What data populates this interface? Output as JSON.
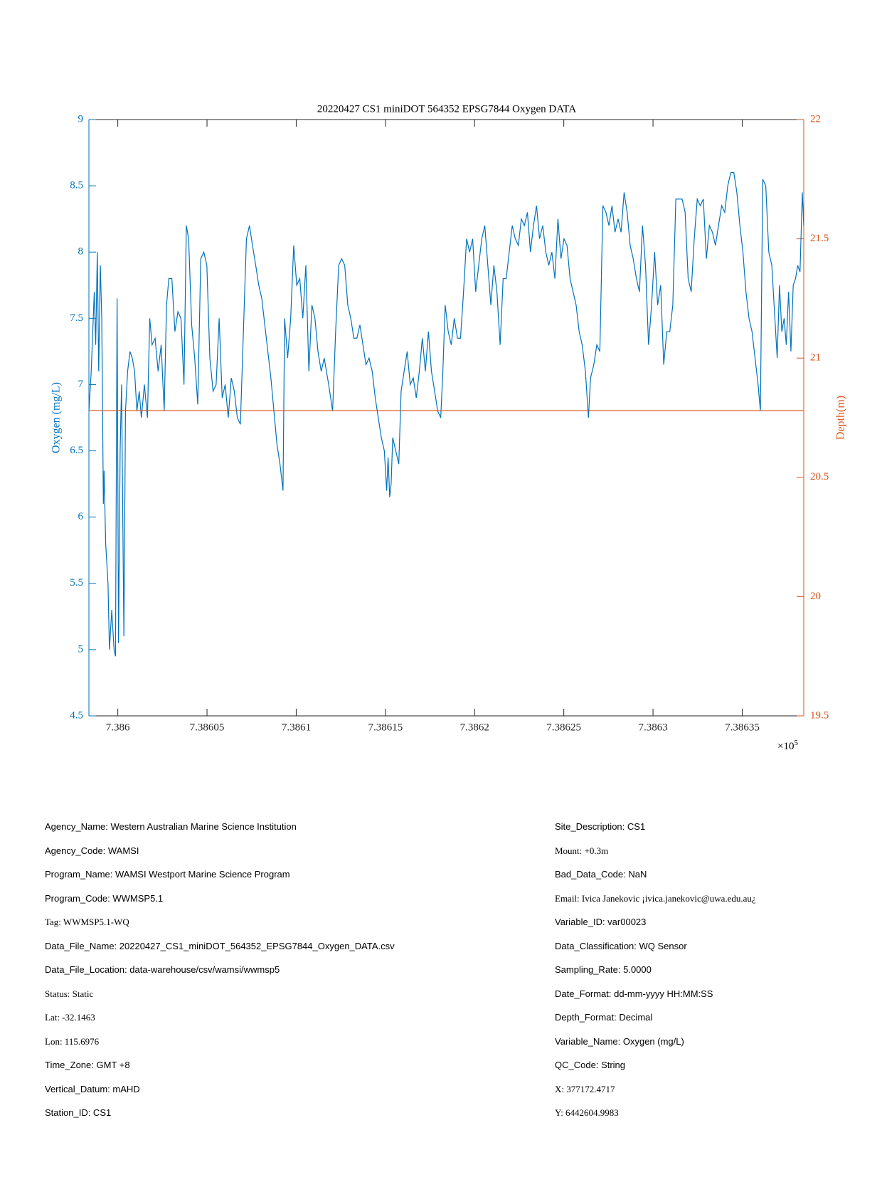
{
  "chart_data": {
    "type": "line",
    "title": "20220427 CS1 miniDOT 564352 EPSG7844 Oxygen DATA",
    "ylabel": "Oxygen (mg/L)",
    "y2label": "Depth(m)",
    "x_multiplier": {
      "base": "×10",
      "power": "5"
    },
    "xlim": [
      738598.38,
      738638.45
    ],
    "xticks": [
      {
        "value": 738600,
        "label": "7.386"
      },
      {
        "value": 738605,
        "label": "7.38605"
      },
      {
        "value": 738610,
        "label": "7.3861"
      },
      {
        "value": 738615,
        "label": "7.38615"
      },
      {
        "value": 738620,
        "label": "7.3862"
      },
      {
        "value": 738625,
        "label": "7.38625"
      },
      {
        "value": 738630,
        "label": "7.3863"
      },
      {
        "value": 738635,
        "label": "7.38635"
      }
    ],
    "ylim": [
      4.5,
      9
    ],
    "yticks": [
      4.5,
      5,
      5.5,
      6,
      6.5,
      7,
      7.5,
      8,
      8.5,
      9
    ],
    "y2lim": [
      19.5,
      22
    ],
    "y2ticks": [
      19.5,
      20,
      20.5,
      21,
      21.5,
      22
    ],
    "series": [
      {
        "name": "Oxygen",
        "color": "#0072BD",
        "x": [
          738598.38,
          738598.51,
          738598.68,
          738598.76,
          738598.85,
          738598.93,
          738599.02,
          738599.1,
          738599.19,
          738599.23,
          738599.32,
          738599.45,
          738599.53,
          738599.66,
          738599.79,
          738599.87,
          738599.96,
          738600.04,
          738600.13,
          738600.21,
          738600.34,
          738600.43,
          738600.55,
          738600.68,
          738600.81,
          738600.94,
          738601.07,
          738601.2,
          738601.32,
          738601.49,
          738601.66,
          738601.79,
          738601.92,
          738602.09,
          738602.26,
          738602.43,
          738602.6,
          738602.73,
          738602.86,
          738603.03,
          738603.2,
          738603.37,
          738603.54,
          738603.71,
          738603.84,
          738603.97,
          738604.14,
          738604.31,
          738604.48,
          738604.65,
          738604.82,
          738604.99,
          738605.16,
          738605.34,
          738605.51,
          738605.68,
          738605.85,
          738606.02,
          738606.19,
          738606.36,
          738606.53,
          738606.7,
          738606.87,
          738607.04,
          738607.21,
          738607.38,
          738607.55,
          738607.73,
          738607.9,
          738608.07,
          738608.24,
          738608.41,
          738608.58,
          738608.75,
          738608.92,
          738609.09,
          738609.26,
          738609.35,
          738609.52,
          738609.69,
          738609.86,
          738610.03,
          738610.2,
          738610.37,
          738610.54,
          738610.71,
          738610.88,
          738611.05,
          738611.22,
          738611.4,
          738611.57,
          738611.82,
          738612.04,
          738612.21,
          738612.38,
          738612.55,
          738612.72,
          738612.89,
          738613.06,
          738613.23,
          738613.4,
          738613.57,
          738613.74,
          738613.91,
          738614.08,
          738614.26,
          738614.43,
          738614.6,
          738614.77,
          738614.94,
          738615.07,
          738615.15,
          738615.24,
          738615.32,
          738615.41,
          738615.58,
          738615.75,
          738615.88,
          738616.05,
          738616.22,
          738616.39,
          738616.56,
          738616.73,
          738616.9,
          738617.07,
          738617.24,
          738617.41,
          738617.58,
          738617.76,
          738617.93,
          738618.1,
          738618.22,
          738618.35,
          738618.52,
          738618.69,
          738618.86,
          738619.04,
          738619.21,
          738619.38,
          738619.55,
          738619.72,
          738619.89,
          738620.06,
          738620.23,
          738620.4,
          738620.57,
          738620.74,
          738620.91,
          738621.08,
          738621.25,
          738621.43,
          738621.6,
          738621.77,
          738621.94,
          738622.11,
          738622.28,
          738622.45,
          738622.62,
          738622.79,
          738622.96,
          738623.13,
          738623.3,
          738623.47,
          738623.64,
          738623.82,
          738623.99,
          738624.16,
          738624.33,
          738624.5,
          738624.67,
          738624.84,
          738625.01,
          738625.18,
          738625.35,
          738625.52,
          738625.69,
          738625.86,
          738626.03,
          738626.21,
          738626.38,
          738626.5,
          738626.68,
          738626.85,
          738627.02,
          738627.19,
          738627.36,
          738627.53,
          738627.7,
          738627.87,
          738628.04,
          738628.21,
          738628.38,
          738628.55,
          738628.72,
          738628.89,
          738629.07,
          738629.24,
          738629.41,
          738629.58,
          738629.75,
          738629.92,
          738630.09,
          738630.26,
          738630.43,
          738630.6,
          738630.77,
          738630.94,
          738631.11,
          738631.28,
          738631.46,
          738631.63,
          738631.8,
          738631.97,
          738632.14,
          738632.31,
          738632.48,
          738632.65,
          738632.82,
          738632.99,
          738633.16,
          738633.33,
          738633.5,
          738633.67,
          738633.85,
          738634.02,
          738634.19,
          738634.36,
          738634.53,
          738634.7,
          738634.87,
          738635.04,
          738635.21,
          738635.38,
          738635.55,
          738635.72,
          738635.89,
          738636.02,
          738636.15,
          738636.32,
          738636.49,
          738636.66,
          738636.83,
          738636.96,
          738637.09,
          738637.22,
          738637.35,
          738637.47,
          738637.6,
          738637.73,
          738637.86,
          738637.99,
          738638.11,
          738638.24,
          738638.37,
          738638.45
        ],
        "values": [
          6.8,
          7.1,
          7.7,
          7.3,
          8.0,
          7.1,
          7.9,
          7.5,
          6.1,
          6.35,
          5.8,
          5.5,
          5.0,
          5.3,
          5.0,
          4.95,
          7.65,
          5.05,
          6.5,
          7.0,
          5.1,
          6.8,
          7.1,
          7.25,
          7.2,
          7.1,
          6.8,
          6.95,
          6.75,
          7.0,
          6.75,
          7.5,
          7.3,
          7.35,
          7.1,
          7.3,
          6.8,
          7.6,
          7.8,
          7.8,
          7.4,
          7.55,
          7.5,
          7.0,
          8.2,
          8.1,
          7.45,
          7.2,
          6.85,
          7.95,
          8.0,
          7.9,
          7.2,
          6.95,
          7.0,
          7.5,
          6.9,
          7.0,
          6.75,
          7.05,
          6.95,
          6.75,
          6.7,
          7.4,
          8.1,
          8.2,
          8.05,
          7.9,
          7.75,
          7.65,
          7.45,
          7.25,
          7.05,
          6.8,
          6.55,
          6.4,
          6.2,
          7.5,
          7.2,
          7.5,
          8.05,
          7.75,
          7.8,
          7.5,
          7.9,
          7.1,
          7.6,
          7.5,
          7.25,
          7.1,
          7.2,
          7.0,
          6.8,
          7.4,
          7.9,
          7.95,
          7.9,
          7.6,
          7.5,
          7.35,
          7.35,
          7.45,
          7.3,
          7.15,
          7.2,
          7.1,
          6.9,
          6.75,
          6.6,
          6.5,
          6.2,
          6.45,
          6.15,
          6.25,
          6.6,
          6.5,
          6.4,
          6.95,
          7.1,
          7.25,
          7.0,
          7.05,
          6.9,
          7.1,
          7.35,
          7.1,
          7.4,
          7.1,
          6.95,
          6.8,
          6.75,
          7.1,
          7.6,
          7.4,
          7.3,
          7.5,
          7.35,
          7.35,
          7.7,
          8.1,
          8.0,
          8.1,
          7.7,
          7.9,
          8.1,
          8.2,
          7.9,
          7.6,
          7.9,
          7.7,
          7.3,
          7.8,
          7.8,
          8.0,
          8.2,
          8.1,
          8.05,
          8.25,
          8.2,
          8.3,
          8.0,
          8.2,
          8.35,
          8.1,
          8.2,
          8.0,
          7.9,
          8.0,
          7.8,
          8.25,
          7.95,
          8.1,
          8.05,
          7.8,
          7.7,
          7.6,
          7.4,
          7.3,
          7.1,
          6.75,
          7.05,
          7.15,
          7.3,
          7.25,
          8.35,
          8.3,
          8.2,
          8.35,
          8.15,
          8.25,
          8.15,
          8.45,
          8.3,
          8.05,
          7.95,
          7.8,
          7.7,
          8.2,
          7.9,
          7.3,
          7.6,
          8.0,
          7.6,
          7.75,
          7.15,
          7.4,
          7.4,
          7.6,
          8.4,
          8.4,
          8.4,
          8.3,
          7.8,
          7.7,
          8.1,
          8.4,
          8.35,
          8.4,
          7.95,
          8.2,
          8.15,
          8.05,
          8.2,
          8.35,
          8.3,
          8.5,
          8.6,
          8.6,
          8.45,
          8.2,
          8.0,
          7.7,
          7.5,
          7.4,
          7.2,
          7.0,
          6.8,
          8.55,
          8.5,
          8.0,
          7.9,
          7.5,
          7.2,
          7.75,
          7.4,
          7.5,
          7.3,
          7.7,
          7.25,
          7.75,
          7.8,
          7.9,
          7.85,
          8.45,
          8.2
        ]
      },
      {
        "name": "Depth",
        "color": "#D95319",
        "axis": "y2",
        "x": [
          738598.38,
          738638.45
        ],
        "values": [
          20.78,
          20.78
        ]
      }
    ]
  },
  "metadata": {
    "left": [
      "Agency_Name: Western Australian Marine Science Institution",
      "Agency_Code: WAMSI",
      "Program_Name: WAMSI Westport Marine Science Program",
      "Program_Code: WWMSP5.1",
      "Tag: WWMSP5.1-WQ",
      "Data_File_Name: 20220427_CS1_miniDOT_564352_EPSG7844_Oxygen_DATA.csv",
      "Data_File_Location: data-warehouse/csv/wamsi/wwmsp5",
      "Status: Static",
      "Lat: -32.1463",
      "Lon: 115.6976",
      "Time_Zone: GMT +8",
      "Vertical_Datum: mAHD",
      "Station_ID: CS1"
    ],
    "right": [
      "Site_Description: CS1",
      "Mount: +0.3m",
      "Bad_Data_Code: NaN",
      "Email: Ivica Janekovic ¡ivica.janekovic@uwa.edu.au¿",
      "Variable_ID: var00023",
      "Data_Classification: WQ Sensor",
      "Sampling_Rate: 5.0000",
      "Date_Format: dd-mm-yyyy HH:MM:SS",
      "Depth_Format: Decimal",
      "Variable_Name: Oxygen (mg/L)",
      "QC_Code: String",
      "X: 377172.4717",
      "Y: 6442604.9983"
    ]
  }
}
